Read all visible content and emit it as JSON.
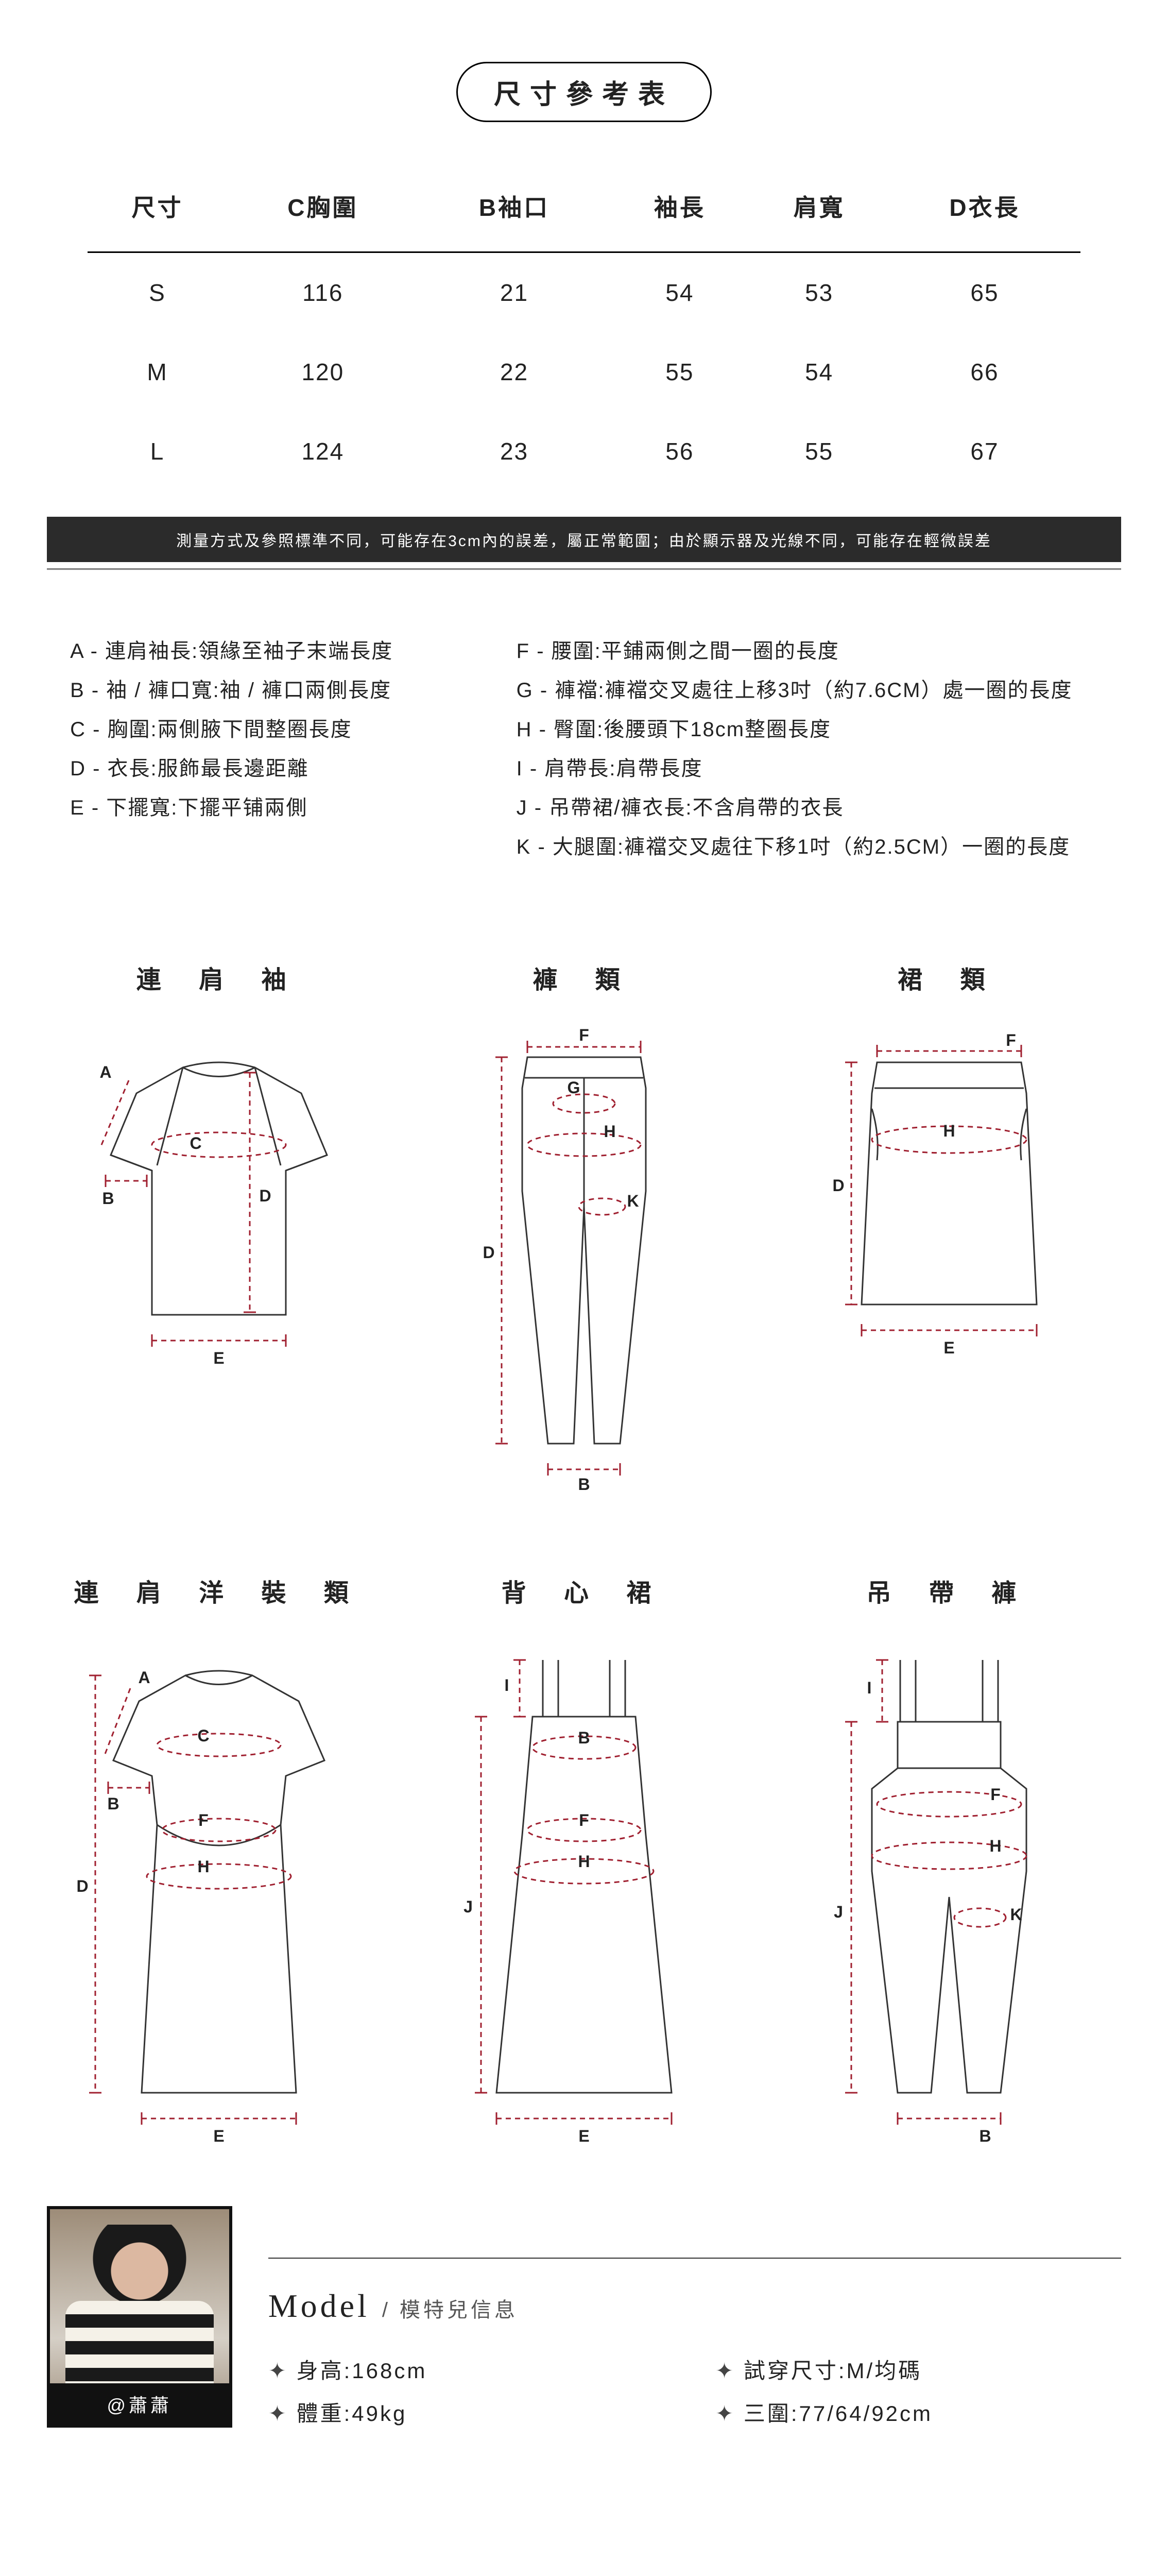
{
  "title": "尺寸參考表",
  "table": {
    "headers": [
      "尺寸",
      "C胸圍",
      "B袖口",
      "袖長",
      "肩寬",
      "D衣長"
    ],
    "rows": [
      [
        "S",
        "116",
        "21",
        "54",
        "53",
        "65"
      ],
      [
        "M",
        "120",
        "22",
        "55",
        "54",
        "66"
      ],
      [
        "L",
        "124",
        "23",
        "56",
        "55",
        "67"
      ]
    ]
  },
  "note": "測量方式及參照標準不同，可能存在3cm內的誤差，屬正常範圍；由於顯示器及光線不同，可能存在輕微誤差",
  "glossary": {
    "left": [
      "A - 連肩袖長:領緣至袖子末端長度",
      "B - 袖 / 褲口寬:袖 / 褲口兩側長度",
      "C - 胸圍:兩側腋下間整圈長度",
      "D - 衣長:服飾最長邊距離",
      "E - 下擺寬:下擺平铺兩側"
    ],
    "right": [
      "F - 腰圍:平鋪兩側之間一圈的長度",
      "G - 褲襠:褲襠交叉處往上移3吋（約7.6CM）處一圈的長度",
      "H - 臀圍:後腰頭下18cm整圈長度",
      "I - 肩帶長:肩帶長度",
      "J - 吊帶裙/褲衣長:不含肩帶的衣長",
      "K - 大腿圍:褲襠交叉處往下移1吋（約2.5CM）一圈的長度"
    ]
  },
  "diagrams": {
    "items": [
      {
        "title": "連 肩 袖",
        "type": "raglan-tee"
      },
      {
        "title": "褲  類",
        "type": "pants"
      },
      {
        "title": "裙  類",
        "type": "skirt"
      },
      {
        "title": "連 肩 洋 裝 類",
        "type": "raglan-dress"
      },
      {
        "title": "背 心 裙",
        "type": "cami-dress"
      },
      {
        "title": "吊 帶 褲",
        "type": "overalls"
      }
    ],
    "stroke": "#333333",
    "dash": "#a02030",
    "label_fill": "#222222",
    "label_fontsize": 32
  },
  "model": {
    "name_handle": "@蕭蕭",
    "heading_en": "Model",
    "heading_zh": "/ 模特兒信息",
    "stats": {
      "height_label": "身高",
      "height_value": "168cm",
      "trysize_label": "試穿尺寸",
      "trysize_value": "M/均碼",
      "weight_label": "體重",
      "weight_value": "49kg",
      "bwh_label": "三圍",
      "bwh_value": "77/64/92cm"
    }
  },
  "colors": {
    "bg": "#ffffff",
    "text": "#222222",
    "note_bg": "#2b2b2b",
    "note_text": "#ffffff"
  }
}
